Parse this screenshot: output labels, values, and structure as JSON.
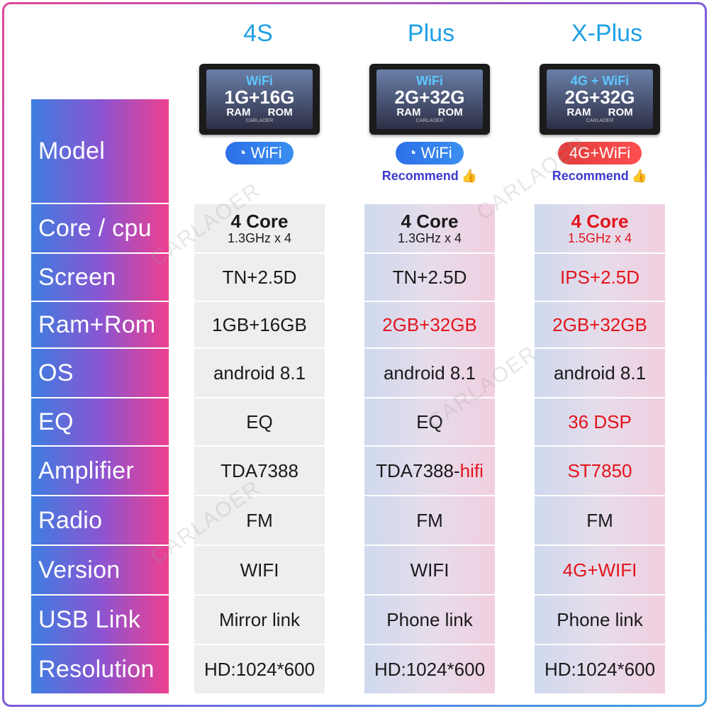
{
  "columns": [
    {
      "title": "4S",
      "screen": {
        "wifi": "WiFi",
        "mem": "1G+16G",
        "ram": "RAM",
        "rom": "ROM",
        "brand": "CARLAOER"
      },
      "badge": "WiFi",
      "recommend": "",
      "core": "4 Core",
      "cpu": "1.3GHz x 4",
      "screen_type": "TN+2.5D",
      "ram_rom": "1GB+16GB",
      "os": "android 8.1",
      "eq": "EQ",
      "amplifier": "TDA7388",
      "amplifier_extra": "",
      "radio": "FM",
      "version": "WIFI",
      "usb_link": "Mirror link",
      "resolution": "HD:1024*600"
    },
    {
      "title": "Plus",
      "screen": {
        "wifi": "WiFi",
        "mem": "2G+32G",
        "ram": "RAM",
        "rom": "ROM",
        "brand": "CARLAOER"
      },
      "badge": "WiFi",
      "recommend": "Recommend",
      "core": "4 Core",
      "cpu": "1.3GHz x 4",
      "screen_type": "TN+2.5D",
      "ram_rom": "2GB+32GB",
      "os": "android 8.1",
      "eq": "EQ",
      "amplifier": "TDA7388-",
      "amplifier_extra": "hifi",
      "radio": "FM",
      "version": "WIFI",
      "usb_link": "Phone link",
      "resolution": "HD:1024*600"
    },
    {
      "title": "X-Plus",
      "screen": {
        "wifi": "4G + WiFi",
        "mem": "2G+32G",
        "ram": "RAM",
        "rom": "ROM",
        "brand": "CARLAOER"
      },
      "badge": "4G+WiFi",
      "recommend": "Recommend",
      "core": "4 Core",
      "cpu": "1.5GHz x 4",
      "screen_type": "IPS+2.5D",
      "ram_rom": "2GB+32GB",
      "os": "android 8.1",
      "eq": "36 DSP",
      "amplifier": "ST7850",
      "amplifier_extra": "",
      "radio": "FM",
      "version": "4G+WIFI",
      "usb_link": "Phone link",
      "resolution": "HD:1024*600"
    }
  ],
  "row_labels": {
    "model": "Model",
    "core": "Core / cpu",
    "screen": "Screen",
    "ram_rom": "Ram+Rom",
    "os": "OS",
    "eq": "EQ",
    "amplifier": "Amplifier",
    "radio": "Radio",
    "version": "Version",
    "usb_link": "USB Link",
    "resolution": "Resolution"
  },
  "watermark": "CARLAOER",
  "colors": {
    "title": "#1ea0e6",
    "highlight": "#e3141c",
    "label_start": "#3e7ee0",
    "label_end": "#ee3f8f"
  }
}
